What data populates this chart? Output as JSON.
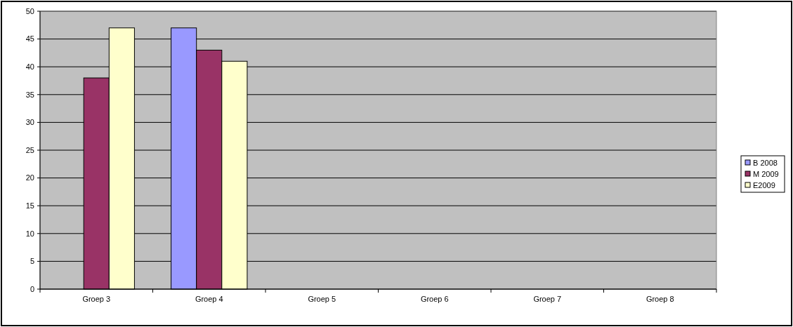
{
  "chart_data": {
    "type": "bar",
    "categories": [
      "Groep 3",
      "Groep 4",
      "Groep 5",
      "Groep 6",
      "Groep 7",
      "Groep 8"
    ],
    "series": [
      {
        "name": "B 2008",
        "color": "#9999ff",
        "values": [
          null,
          47,
          null,
          null,
          null,
          null
        ]
      },
      {
        "name": "M 2009",
        "color": "#993366",
        "values": [
          38,
          43,
          null,
          null,
          null,
          null
        ]
      },
      {
        "name": "E2009",
        "color": "#ffffcc",
        "values": [
          47,
          41,
          null,
          null,
          null,
          null
        ]
      }
    ],
    "ylim": [
      0,
      50
    ],
    "yticks": [
      0,
      5,
      10,
      15,
      20,
      25,
      30,
      35,
      40,
      45,
      50
    ],
    "grid": "y",
    "legend": "right"
  }
}
